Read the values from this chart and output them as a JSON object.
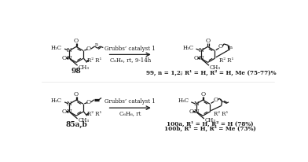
{
  "background_color": "#ffffff",
  "line_color": "#1a1a1a",
  "line_width": 0.9,
  "reaction1_reagent": "Grubbs’ catalyst 1",
  "reaction1_conditions": "C₆H₆, rt, 9-14h",
  "reaction2_reagent": "Grubbs’ catalyst 1",
  "reaction2_conditions": "C₆H₆, rt",
  "label98": "98",
  "label85": "85a,b",
  "label99": "99, n = 1,2; R",
  "label99b": " = H, R",
  "label99c": " = H, Me (75-77)%",
  "label100a": "100a, R",
  "label100a2": " = H, R",
  "label100a3": " = H (78%)",
  "label100b": "100b, R",
  "label100b2": " = H, R",
  "label100b3": " = Me (73%)"
}
